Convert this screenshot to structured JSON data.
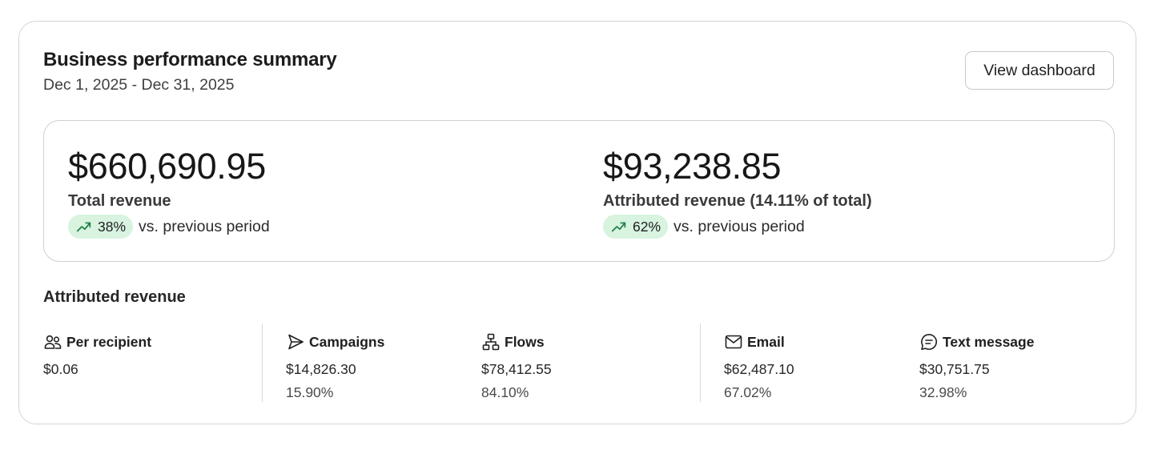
{
  "header": {
    "title": "Business performance summary",
    "date_range": "Dec 1, 2025 - Dec 31, 2025",
    "dashboard_button": "View dashboard"
  },
  "summary": {
    "total": {
      "value": "$660,690.95",
      "label": "Total revenue",
      "change": "38%",
      "comparison": "vs. previous period",
      "trend_icon": "trending-up-icon"
    },
    "attributed": {
      "value": "$93,238.85",
      "label": "Attributed revenue (14.11% of total)",
      "change": "62%",
      "comparison": "vs. previous period",
      "trend_icon": "trending-up-icon"
    }
  },
  "attributed_section": {
    "title": "Attributed revenue",
    "stats": [
      {
        "label": "Per recipient",
        "value": "$0.06",
        "percent": "",
        "icon": "users-icon"
      },
      {
        "label": "Campaigns",
        "value": "$14,826.30",
        "percent": "15.90%",
        "icon": "send-icon"
      },
      {
        "label": "Flows",
        "value": "$78,412.55",
        "percent": "84.10%",
        "icon": "flow-icon"
      },
      {
        "label": "Email",
        "value": "$62,487.10",
        "percent": "67.02%",
        "icon": "mail-icon"
      },
      {
        "label": "Text message",
        "value": "$30,751.75",
        "percent": "32.98%",
        "icon": "message-icon"
      }
    ]
  },
  "colors": {
    "positive_pill_bg": "#d8f3e0",
    "positive_icon": "#1a7f45",
    "border": "#d4d4d4"
  }
}
